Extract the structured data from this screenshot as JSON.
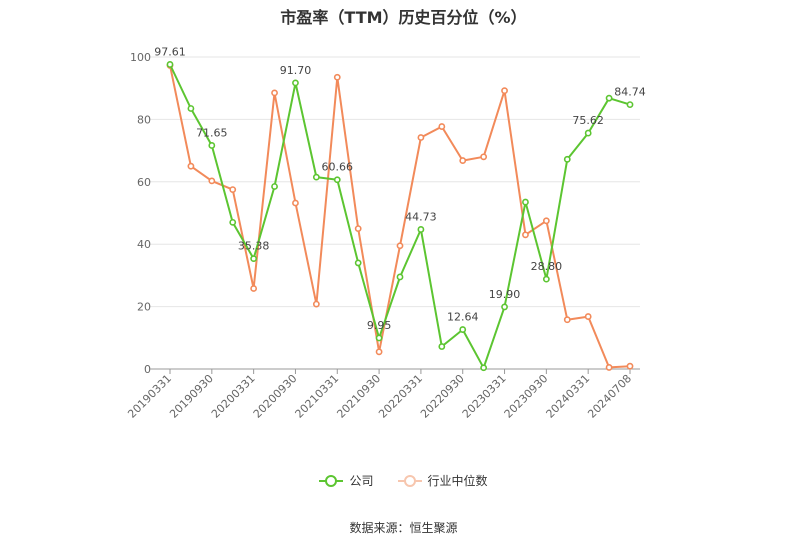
{
  "chart_data": {
    "type": "line",
    "title": "市盈率（TTM）历史百分位（%）",
    "x": [
      "20190331",
      "20190630",
      "20190930",
      "20191231",
      "20200331",
      "20200630",
      "20200930",
      "20201231",
      "20210331",
      "20210630",
      "20210930",
      "20211231",
      "20220331",
      "20220630",
      "20220930",
      "20221231",
      "20230331",
      "20230630",
      "20230930",
      "20231231",
      "20240331",
      "20240630",
      "20240708"
    ],
    "x_tick_labels": [
      "20190331",
      "20190930",
      "20200331",
      "20200930",
      "20210331",
      "20210930",
      "20220331",
      "20220930",
      "20230331",
      "20230930",
      "20240331",
      "20240708"
    ],
    "y_ticks": [
      0,
      20,
      40,
      60,
      80,
      100
    ],
    "ylim": [
      0,
      100
    ],
    "grid": true,
    "legend_position": "bottom",
    "series": [
      {
        "name": "公司",
        "color": "#5cc531",
        "values": [
          97.61,
          83.5,
          71.65,
          47.0,
          35.38,
          58.5,
          91.7,
          61.5,
          60.66,
          34.0,
          9.95,
          29.5,
          44.73,
          7.2,
          12.64,
          0.4,
          19.9,
          53.5,
          28.8,
          67.2,
          75.62,
          86.8,
          84.74
        ],
        "labels": {
          "0": "97.61",
          "2": "71.65",
          "4": "35.38",
          "6": "91.70",
          "8": "60.66",
          "10": "9.95",
          "12": "44.73",
          "14": "12.64",
          "16": "19.90",
          "18": "28.80",
          "20": "75.62",
          "22": "84.74"
        }
      },
      {
        "name": "行业中位数",
        "color": "#f28a5a",
        "values": [
          97.3,
          65.0,
          60.3,
          57.5,
          25.8,
          88.5,
          53.2,
          20.8,
          93.5,
          45.0,
          5.5,
          39.5,
          74.2,
          77.7,
          66.8,
          68.0,
          89.2,
          43.0,
          47.5,
          15.8,
          16.8,
          0.5,
          0.9
        ]
      }
    ]
  },
  "source": "数据来源：恒生聚源"
}
